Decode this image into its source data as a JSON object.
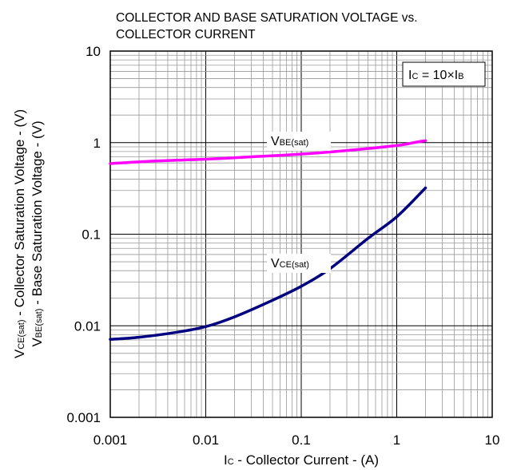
{
  "chart_data": {
    "type": "line",
    "title_lines": [
      "COLLECTOR AND BASE SATURATION VOLTAGE vs.",
      "COLLECTOR CURRENT"
    ],
    "xscale": "log",
    "yscale": "log",
    "xlim": [
      0.001,
      10
    ],
    "ylim": [
      0.001,
      10
    ],
    "grid": true,
    "x_ticks": [
      "0.001",
      "0.01",
      "0.1",
      "1",
      "10"
    ],
    "y_ticks": [
      "10",
      "1",
      "0.1",
      "0.01",
      "0.001"
    ],
    "xlabel": {
      "main": "I",
      "sub": "C",
      "rest": " - Collector Current - (A)"
    },
    "ylabel_line1": {
      "main": "V",
      "sub": "CE(sat)",
      "rest": " - Collector Saturation Voltage - (V)"
    },
    "ylabel_line2": {
      "main": "V",
      "sub": "BE(sat)",
      "rest": " - Base Saturation Voltage - (V)"
    },
    "legend": {
      "p1": "I",
      "s1": "C",
      "p2": " = 10×I",
      "s2": "B",
      "position": "top-right"
    },
    "series": [
      {
        "name": "VBE(sat)",
        "label_main": "V",
        "label_sub": "BE(sat)",
        "color": "#ff00ff",
        "x": [
          0.001,
          0.003,
          0.01,
          0.03,
          0.1,
          0.3,
          1,
          1.5,
          2
        ],
        "y": [
          0.59,
          0.63,
          0.66,
          0.7,
          0.75,
          0.82,
          0.93,
          1.0,
          1.05
        ]
      },
      {
        "name": "VCE(sat)",
        "label_main": "V",
        "label_sub": "CE(sat)",
        "color": "#000080",
        "x": [
          0.001,
          0.002,
          0.005,
          0.01,
          0.02,
          0.05,
          0.1,
          0.2,
          0.5,
          1,
          2
        ],
        "y": [
          0.0071,
          0.0075,
          0.0085,
          0.0098,
          0.0125,
          0.019,
          0.027,
          0.042,
          0.09,
          0.155,
          0.32
        ]
      }
    ]
  }
}
